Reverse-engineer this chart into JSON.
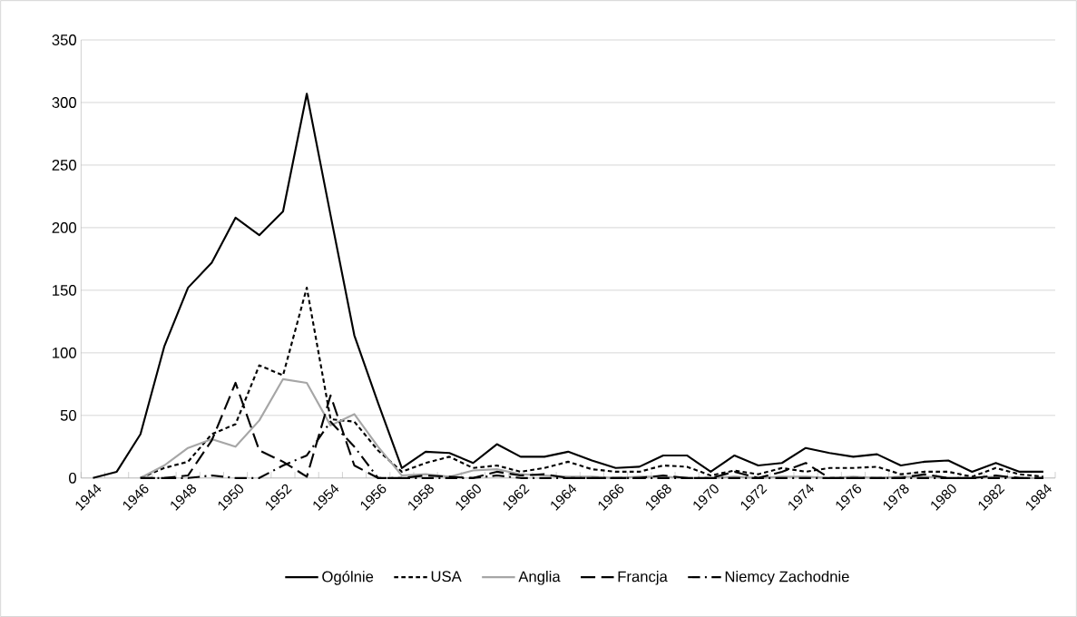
{
  "chart_data": {
    "type": "line",
    "categories": [
      "1944",
      null,
      "1946",
      null,
      "1948",
      null,
      "1950",
      null,
      "1952",
      null,
      "1954",
      null,
      "1956",
      null,
      "1958",
      null,
      "1960",
      null,
      "1962",
      null,
      "1964",
      null,
      "1966",
      null,
      "1968",
      null,
      "1970",
      null,
      "1972",
      null,
      "1974",
      null,
      "1976",
      null,
      "1978",
      null,
      "1980",
      null,
      "1982",
      null,
      "1984"
    ],
    "ylim": [
      0,
      350
    ],
    "yticks": [
      0,
      50,
      100,
      150,
      200,
      250,
      300,
      350
    ],
    "grid": "y",
    "legend": "bottom",
    "marker": "none",
    "series": [
      {
        "name": "Ogólnie",
        "color": "#000000",
        "line_style": "solid",
        "values": [
          0,
          5,
          35,
          105,
          152,
          172,
          208,
          194,
          213,
          307,
          210,
          114,
          60,
          8,
          21,
          20,
          12,
          27,
          17,
          17,
          21,
          14,
          8,
          9,
          18,
          18,
          5,
          18,
          10,
          12,
          24,
          20,
          17,
          19,
          10,
          13,
          14,
          5,
          12,
          5,
          5
        ]
      },
      {
        "name": "USA",
        "color": "#000000",
        "line_style": "dashed",
        "values": [
          null,
          null,
          0,
          8,
          13,
          35,
          43,
          90,
          82,
          152,
          47,
          45,
          22,
          5,
          12,
          17,
          8,
          10,
          5,
          8,
          13,
          7,
          5,
          5,
          10,
          9,
          2,
          6,
          3,
          8,
          5,
          8,
          8,
          9,
          3,
          5,
          5,
          1,
          8,
          3,
          1
        ]
      },
      {
        "name": "Anglia",
        "color": "#a6a6a6",
        "line_style": "solid",
        "values": [
          null,
          null,
          0,
          10,
          24,
          31,
          25,
          46,
          79,
          76,
          42,
          51,
          25,
          2,
          3,
          1,
          6,
          7,
          3,
          2,
          1,
          1,
          0,
          1,
          1,
          0,
          0,
          1,
          0,
          1,
          1,
          0,
          1,
          0,
          1,
          1,
          0,
          0,
          1,
          0,
          0
        ]
      },
      {
        "name": "Francja",
        "color": "#000000",
        "line_style": "longdashed",
        "values": [
          null,
          null,
          0,
          0,
          2,
          30,
          76,
          22,
          13,
          1,
          66,
          10,
          0,
          0,
          2,
          1,
          0,
          5,
          2,
          3,
          0,
          0,
          0,
          0,
          2,
          0,
          0,
          5,
          0,
          5,
          12,
          0,
          0,
          0,
          0,
          3,
          0,
          0,
          2,
          0,
          0
        ]
      },
      {
        "name": "Niemcy Zachodnie",
        "color": "#000000",
        "line_style": "dashdotted",
        "values": [
          null,
          null,
          0,
          0,
          0,
          2,
          0,
          0,
          10,
          18,
          45,
          25,
          0,
          0,
          0,
          0,
          0,
          2,
          0,
          0,
          0,
          0,
          0,
          0,
          0,
          0,
          0,
          0,
          0,
          0,
          0,
          0,
          0,
          0,
          0,
          0,
          0,
          0,
          0,
          0,
          0
        ]
      }
    ]
  }
}
